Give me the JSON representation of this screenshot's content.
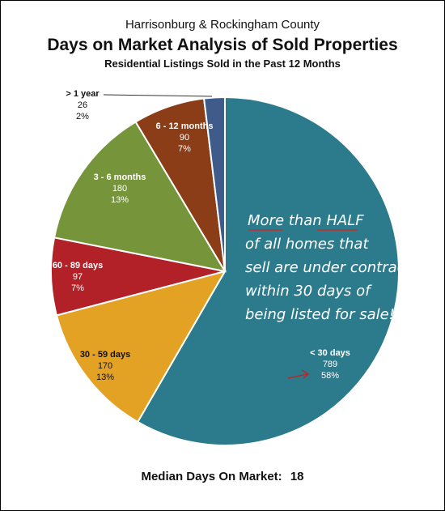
{
  "header": {
    "subtitle_top": "Harrisonburg & Rockingham County",
    "title": "Days on Market Analysis of Sold Properties",
    "subtitle": "Residential Listings Sold in the Past 12 Months"
  },
  "annotation": {
    "lines": [
      "More than HALF",
      "of all homes that",
      "sell are under contract",
      "within 30 days of",
      "being listed for sale!"
    ]
  },
  "footer": {
    "label": "Median Days On Market:",
    "value": "18"
  },
  "chart_data": {
    "type": "pie",
    "title": "Days on Market Analysis of Sold Properties",
    "slices": [
      {
        "name": "< 30 days",
        "value": 789,
        "percent": "58%",
        "color": "#2b7b8c",
        "label_color": "#ffffff"
      },
      {
        "name": "30 - 59 days",
        "value": 170,
        "percent": "13%",
        "color": "#e3a224",
        "label_color": "#111111"
      },
      {
        "name": "60 - 89 days",
        "value": 97,
        "percent": "7%",
        "color": "#b22028",
        "label_color": "#ffffff"
      },
      {
        "name": "3 - 6 months",
        "value": 180,
        "percent": "13%",
        "color": "#76953a",
        "label_color": "#ffffff"
      },
      {
        "name": "6 - 12 months",
        "value": 90,
        "percent": "7%",
        "color": "#8b3d18",
        "label_color": "#ffffff"
      },
      {
        "name": "> 1 year",
        "value": 26,
        "percent": "2%",
        "color": "#3e5b8a",
        "label_color": "#111111"
      }
    ],
    "legend": "none"
  }
}
